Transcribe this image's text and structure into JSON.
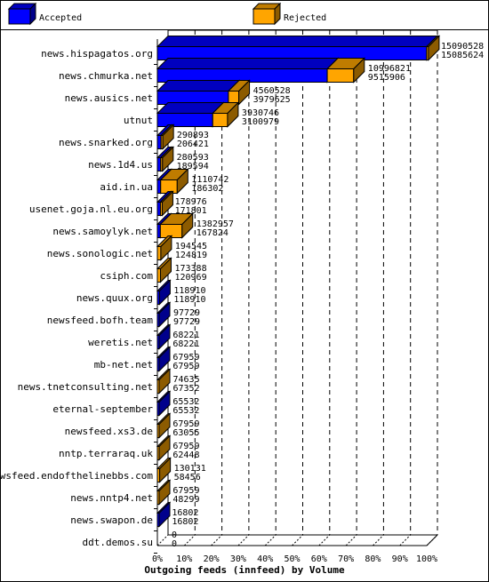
{
  "chart_data": {
    "type": "bar",
    "title": "Outgoing feeds (innfeed) by Volume",
    "legend": {
      "placement": "top",
      "entries": [
        "Accepted",
        "Rejected"
      ]
    },
    "colors": {
      "Accepted": "#0000ff",
      "Rejected": "#ffa500"
    },
    "xlim": [
      0,
      100
    ],
    "xticks": [
      "0%",
      "10%",
      "20%",
      "30%",
      "40%",
      "50%",
      "60%",
      "70%",
      "80%",
      "90%",
      "100%"
    ],
    "categories": [
      "news.hispagatos.org",
      "news.chmurka.net",
      "news.ausics.net",
      "utnut",
      "news.snarked.org",
      "news.1d4.us",
      "aid.in.ua",
      "usenet.goja.nl.eu.org",
      "news.samoylyk.net",
      "news.sonologic.net",
      "csiph.com",
      "news.quux.org",
      "newsfeed.bofh.team",
      "weretis.net",
      "mb-net.net",
      "news.tnetconsulting.net",
      "eternal-september",
      "newsfeed.xs3.de",
      "nntp.terraraq.uk",
      "newsfeed.endofthelinebbs.com",
      "news.nntp4.net",
      "news.swapon.de",
      "ddt.demos.su"
    ],
    "series": [
      {
        "name": "Accepted",
        "values": [
          15090528,
          10996821,
          4560528,
          3930746,
          290893,
          280593,
          1110742,
          178976,
          1382957,
          194545,
          173388,
          118910,
          97729,
          68221,
          67959,
          74635,
          65532,
          67959,
          67959,
          130131,
          67959,
          16802,
          0
        ]
      },
      {
        "name": "Rejected",
        "values": [
          15085624,
          9515906,
          3979625,
          3100979,
          206421,
          189594,
          186302,
          171801,
          167824,
          124819,
          120969,
          118910,
          97729,
          68221,
          67959,
          67352,
          65532,
          63055,
          62448,
          58456,
          48299,
          16802,
          0
        ]
      }
    ]
  }
}
